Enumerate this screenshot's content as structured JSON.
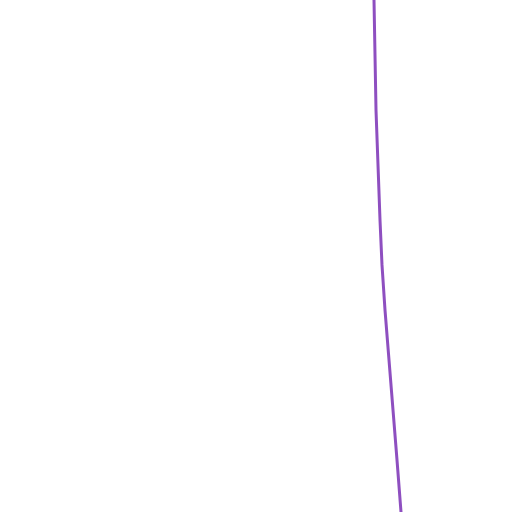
{
  "canvas": {
    "background": "#ffffff"
  },
  "curve": {
    "color": "#8e4fc0"
  }
}
